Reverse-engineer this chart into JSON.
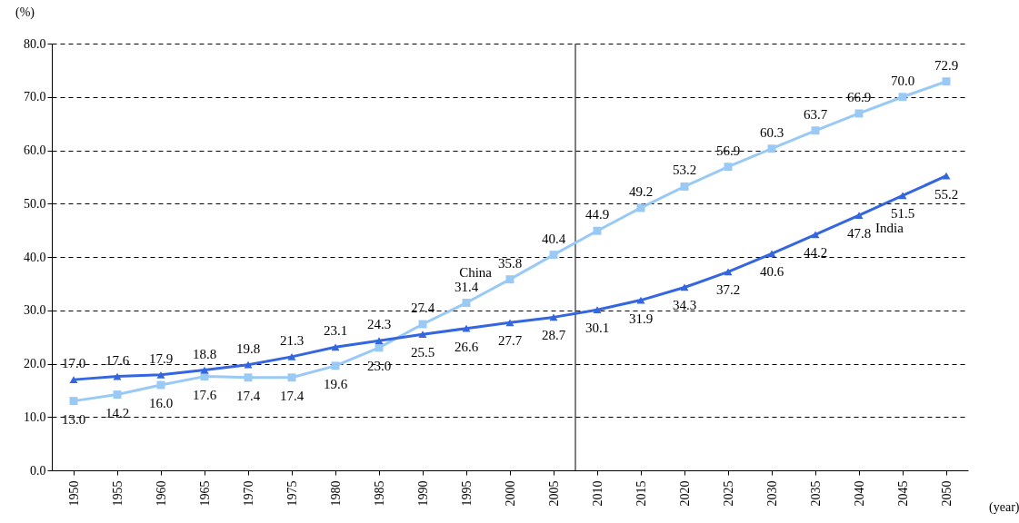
{
  "chart_data": {
    "type": "line",
    "xlabel": "(year)",
    "ylabel": "(%)",
    "x": [
      1950,
      1955,
      1960,
      1965,
      1970,
      1975,
      1980,
      1985,
      1990,
      1995,
      2000,
      2005,
      2010,
      2015,
      2020,
      2025,
      2030,
      2035,
      2040,
      2045,
      2050
    ],
    "xlim": [
      1947.5,
      2052.5
    ],
    "xticks": [
      1950,
      1955,
      1960,
      1965,
      1970,
      1975,
      1980,
      1985,
      1990,
      1995,
      2000,
      2005,
      2010,
      2015,
      2020,
      2025,
      2030,
      2035,
      2040,
      2045,
      2050
    ],
    "ylim": [
      0,
      80
    ],
    "yticks": [
      {
        "value": 0,
        "label": "0.0"
      },
      {
        "value": 10,
        "label": "10.0"
      },
      {
        "value": 20,
        "label": "20.0"
      },
      {
        "value": 30,
        "label": "30.0"
      },
      {
        "value": 40,
        "label": "40.0"
      },
      {
        "value": 50,
        "label": "50.0"
      },
      {
        "value": 60,
        "label": "60.0"
      },
      {
        "value": 70,
        "label": "70.0"
      },
      {
        "value": 80,
        "label": "80.0"
      }
    ],
    "grid": "y",
    "line_style": "solid",
    "series": [
      {
        "name": "China",
        "color": "#99c9f5",
        "marker": "square",
        "values": [
          13.0,
          14.2,
          16.0,
          17.6,
          17.4,
          17.4,
          19.6,
          23.0,
          27.4,
          31.4,
          35.8,
          40.4,
          44.9,
          49.2,
          53.2,
          56.9,
          60.3,
          63.7,
          66.9,
          70.0,
          72.9
        ],
        "value_labels": [
          "13.0",
          "14.2",
          "16.0",
          "17.6",
          "17.4",
          "17.4",
          "19.6",
          "23.0",
          "27.4",
          "31.4",
          "35.8",
          "40.4",
          "44.9",
          "49.2",
          "53.2",
          "56.9",
          "60.3",
          "63.7",
          "66.9",
          "70.0",
          "72.9"
        ]
      },
      {
        "name": "India",
        "color": "#3366e0",
        "marker": "triangle",
        "values": [
          17.0,
          17.6,
          17.9,
          18.8,
          19.8,
          21.3,
          23.1,
          24.3,
          25.5,
          26.6,
          27.7,
          28.7,
          30.1,
          31.9,
          34.3,
          37.2,
          40.6,
          44.2,
          47.8,
          51.5,
          55.2
        ],
        "value_labels": [
          "17.0",
          "17.6",
          "17.9",
          "18.8",
          "19.8",
          "21.3",
          "23.1",
          "24.3",
          "25.5",
          "26.6",
          "27.7",
          "28.7",
          "30.1",
          "31.9",
          "34.3",
          "37.2",
          "40.6",
          "44.2",
          "47.8",
          "51.5",
          "55.2"
        ]
      }
    ],
    "ref_lines": [
      {
        "axis": "x",
        "value": 2007.5,
        "color": "#000000",
        "line_style": "solid"
      }
    ]
  }
}
